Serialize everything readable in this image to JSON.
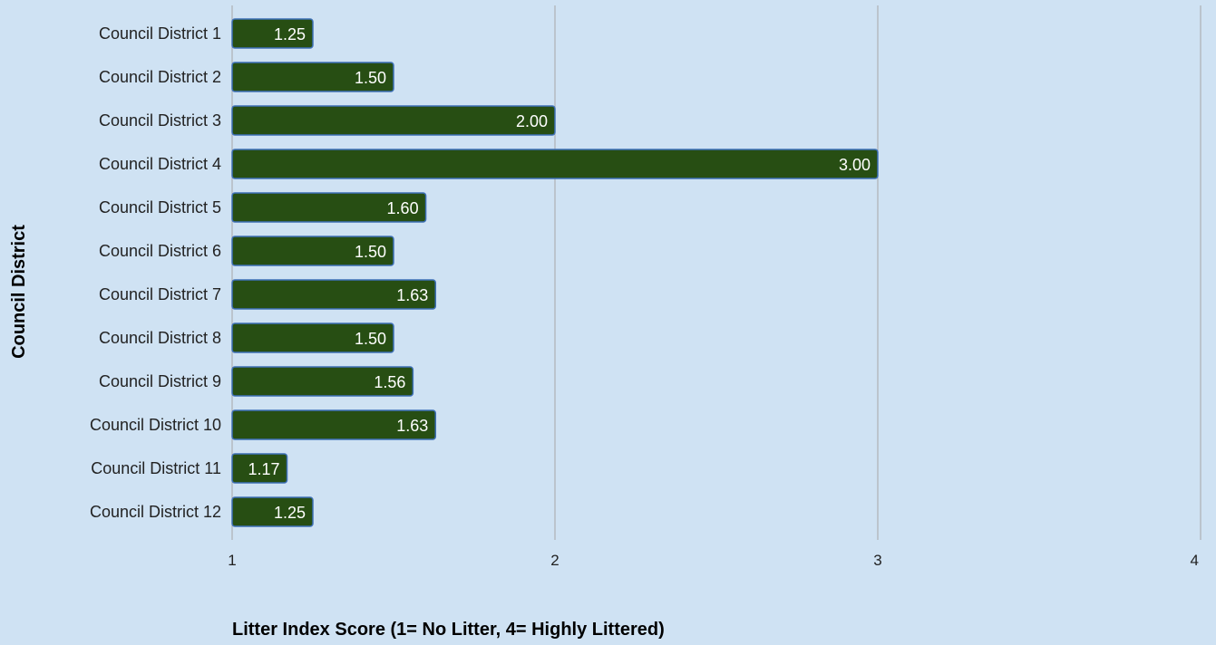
{
  "chart_data": {
    "type": "bar",
    "orientation": "horizontal",
    "title": "",
    "xlabel": "Litter Index Score (1= No Litter, 4= Highly Littered)",
    "ylabel": "Council District",
    "categories": [
      "Council District 1",
      "Council District 2",
      "Council District 3",
      "Council District 4",
      "Council District 5",
      "Council District 6",
      "Council District 7",
      "Council District 8",
      "Council District 9",
      "Council District 10",
      "Council District 11",
      "Council District 12"
    ],
    "values": [
      1.25,
      1.5,
      2.0,
      3.0,
      1.6,
      1.5,
      1.63,
      1.5,
      1.56,
      1.63,
      1.17,
      1.25
    ],
    "data_labels": [
      "1.25",
      "1.50",
      "2.00",
      "3.00",
      "1.60",
      "1.50",
      "1.63",
      "1.50",
      "1.56",
      "1.63",
      "1.17",
      "1.25"
    ],
    "xlim": [
      1,
      4
    ],
    "xticks": [
      1,
      2,
      3,
      4
    ],
    "xtick_labels": [
      "1",
      "2",
      "3",
      "4"
    ],
    "grid": "vertical",
    "legend": "none",
    "colors": {
      "background": "#cfe2f3",
      "bar_fill": "#274e13",
      "bar_stroke": "#3d6fb6",
      "gridline": "#a7a7a7",
      "data_label": "#ffffff"
    }
  }
}
